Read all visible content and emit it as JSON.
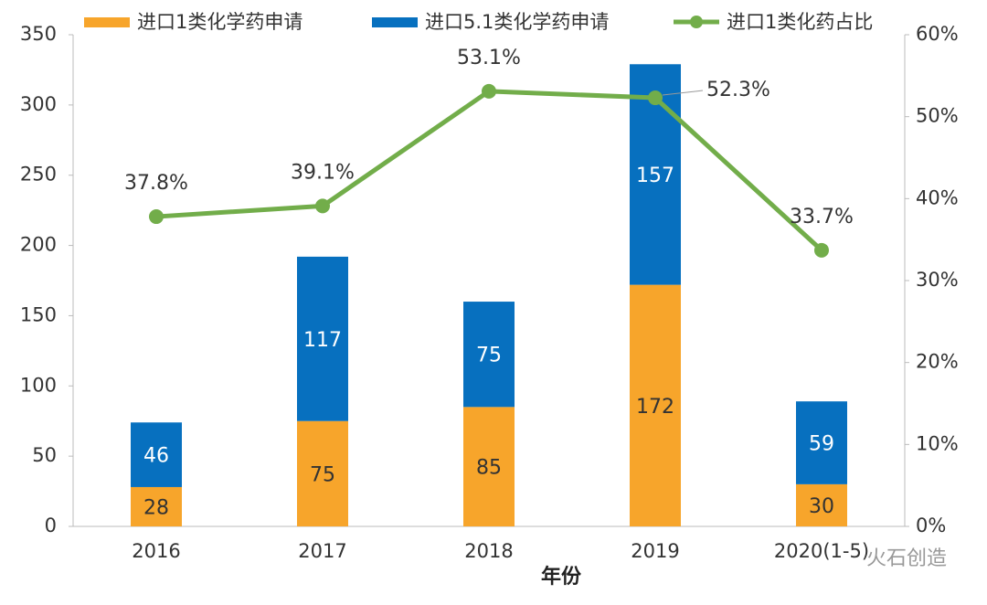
{
  "chart_data": {
    "type": "bar",
    "stacked": true,
    "legend": "top",
    "categories": [
      "2016",
      "2017",
      "2018",
      "2019",
      "2020(1-5)"
    ],
    "x_label": "年份",
    "series": [
      {
        "name": "进口1类化学药申请",
        "color": "#f7a52b",
        "values": [
          28,
          75,
          85,
          172,
          30
        ]
      },
      {
        "name": "进口5.1类化学药申请",
        "color": "#0770bf",
        "values": [
          46,
          117,
          75,
          157,
          59
        ]
      },
      {
        "name": "进口1类化药占比",
        "type": "line",
        "axis": "y2",
        "color": "#72ad4a",
        "values": [
          37.8,
          39.1,
          53.1,
          52.3,
          33.7
        ],
        "value_labels": [
          "37.8%",
          "39.1%",
          "53.1%",
          "52.3%",
          "33.7%"
        ]
      }
    ],
    "ylim": [
      0,
      350
    ],
    "yticks": [
      0,
      50,
      100,
      150,
      200,
      250,
      300,
      350
    ],
    "y2lim": [
      0,
      60
    ],
    "y2ticks": [
      {
        "value": 0,
        "label": "0%"
      },
      {
        "value": 10,
        "label": "10%"
      },
      {
        "value": 20,
        "label": "20%"
      },
      {
        "value": 30,
        "label": "30%"
      },
      {
        "value": 40,
        "label": "40%"
      },
      {
        "value": 50,
        "label": "50%"
      },
      {
        "value": 60,
        "label": "60%"
      }
    ],
    "watermark": "火石创造"
  }
}
